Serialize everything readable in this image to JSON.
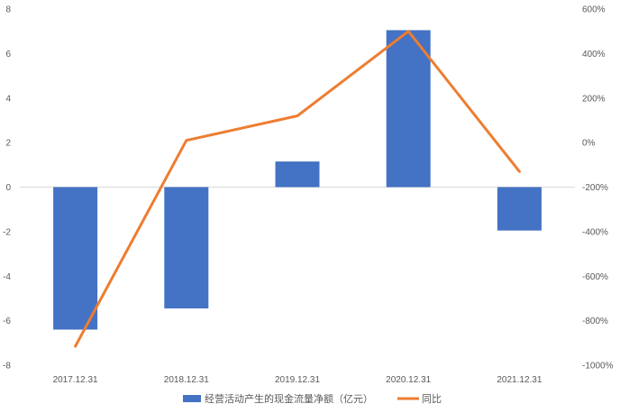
{
  "chart_data": {
    "type": "bar",
    "categories": [
      "2017.12.31",
      "2018.12.31",
      "2019.12.31",
      "2020.12.31",
      "2021.12.31"
    ],
    "series": [
      {
        "name": "经营活动产生的现金流量净额（亿元）",
        "kind": "bar",
        "axis": "left",
        "color": "#4472C4",
        "values": [
          -6.4,
          -5.45,
          1.15,
          7.05,
          -1.95
        ]
      },
      {
        "name": "同比",
        "kind": "line",
        "axis": "right",
        "color": "#ED7D31",
        "values": [
          -915,
          10,
          120,
          500,
          -130
        ]
      }
    ],
    "y_left": {
      "min": -8,
      "max": 8,
      "step": 2,
      "ticks": [
        "-8",
        "-6",
        "-4",
        "-2",
        "0",
        "2",
        "4",
        "6",
        "8"
      ]
    },
    "y_right": {
      "min": -1000,
      "max": 600,
      "step": 200,
      "ticks": [
        "-1000%",
        "-800%",
        "-600%",
        "-400%",
        "-200%",
        "0%",
        "200%",
        "400%",
        "600%"
      ]
    },
    "grid": false,
    "legend_position": "bottom"
  }
}
